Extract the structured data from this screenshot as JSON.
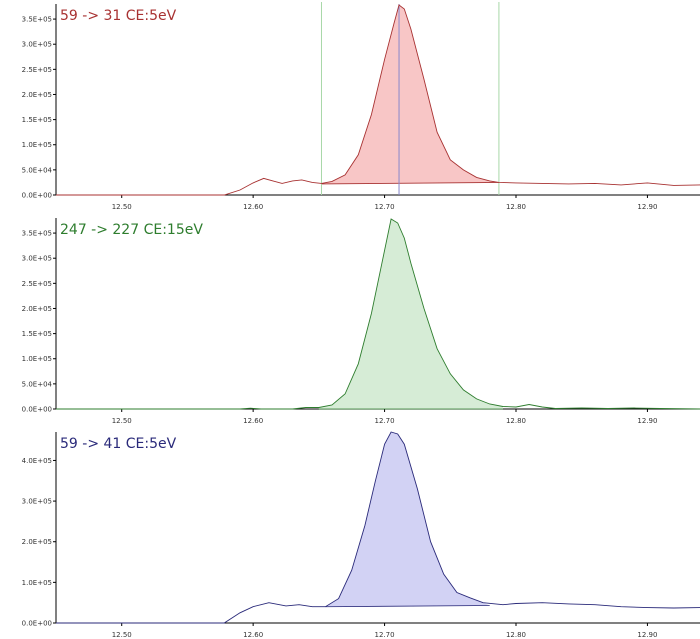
{
  "chart_data": [
    {
      "type": "line",
      "title": "59 -> 31 CE:5eV",
      "color": "#a83232",
      "fill": "#f8c6c6",
      "xlim": [
        12.45,
        12.94
      ],
      "ylim": [
        0,
        380000
      ],
      "x_ticks": [
        12.5,
        12.6,
        12.7,
        12.8,
        12.9
      ],
      "x_tick_labels": [
        "12.50",
        "12.60",
        "12.70",
        "12.80",
        "12.90"
      ],
      "y_ticks": [
        0,
        50000,
        100000,
        150000,
        200000,
        250000,
        300000,
        350000
      ],
      "y_tick_labels": [
        "0.0E+00",
        "5.0E+04",
        "1.0E+05",
        "1.5E+05",
        "2.0E+05",
        "2.5E+05",
        "3.0E+05",
        "3.5E+05"
      ],
      "integration_bounds": [
        12.652,
        12.787
      ],
      "integration_bounds_color": "#a8d8a8",
      "apex_marker": 12.711,
      "apex_marker_color": "#8888cc",
      "baseline": [
        [
          12.652,
          22000
        ],
        [
          12.787,
          25000
        ]
      ],
      "fill_range": [
        12.652,
        12.787
      ],
      "trace": [
        [
          12.45,
          0
        ],
        [
          12.578,
          0
        ],
        [
          12.59,
          10000
        ],
        [
          12.6,
          24000
        ],
        [
          12.608,
          33000
        ],
        [
          12.615,
          28000
        ],
        [
          12.622,
          23000
        ],
        [
          12.63,
          28000
        ],
        [
          12.637,
          30000
        ],
        [
          12.645,
          25000
        ],
        [
          12.652,
          23000
        ],
        [
          12.66,
          27000
        ],
        [
          12.67,
          40000
        ],
        [
          12.68,
          80000
        ],
        [
          12.69,
          160000
        ],
        [
          12.7,
          270000
        ],
        [
          12.707,
          340000
        ],
        [
          12.711,
          378000
        ],
        [
          12.715,
          370000
        ],
        [
          12.72,
          330000
        ],
        [
          12.73,
          230000
        ],
        [
          12.74,
          125000
        ],
        [
          12.75,
          70000
        ],
        [
          12.76,
          50000
        ],
        [
          12.77,
          35000
        ],
        [
          12.78,
          28000
        ],
        [
          12.787,
          25000
        ],
        [
          12.8,
          24000
        ],
        [
          12.82,
          23000
        ],
        [
          12.84,
          22000
        ],
        [
          12.86,
          23000
        ],
        [
          12.88,
          20000
        ],
        [
          12.9,
          24000
        ],
        [
          12.92,
          19000
        ],
        [
          12.94,
          20000
        ]
      ]
    },
    {
      "type": "line",
      "title": "247 -> 227 CE:15eV",
      "color": "#2e7d2e",
      "fill": "#d6ecd6",
      "xlim": [
        12.45,
        12.94
      ],
      "ylim": [
        0,
        380000
      ],
      "x_ticks": [
        12.5,
        12.6,
        12.7,
        12.8,
        12.9
      ],
      "x_tick_labels": [
        "12.50",
        "12.60",
        "12.70",
        "12.80",
        "12.90"
      ],
      "y_ticks": [
        0,
        50000,
        100000,
        150000,
        200000,
        250000,
        300000,
        350000
      ],
      "y_tick_labels": [
        "0.0E+00",
        "5.0E+04",
        "1.0E+05",
        "1.5E+05",
        "2.0E+05",
        "2.5E+05",
        "3.0E+05",
        "3.5E+05"
      ],
      "baseline": [
        [
          12.65,
          0
        ],
        [
          12.79,
          0
        ]
      ],
      "fill_range": [
        12.65,
        12.79
      ],
      "trace": [
        [
          12.45,
          0
        ],
        [
          12.59,
          0
        ],
        [
          12.598,
          1500
        ],
        [
          12.606,
          0
        ],
        [
          12.63,
          0
        ],
        [
          12.64,
          3000
        ],
        [
          12.65,
          3000
        ],
        [
          12.66,
          8000
        ],
        [
          12.67,
          30000
        ],
        [
          12.68,
          90000
        ],
        [
          12.69,
          190000
        ],
        [
          12.698,
          290000
        ],
        [
          12.705,
          378000
        ],
        [
          12.71,
          370000
        ],
        [
          12.715,
          340000
        ],
        [
          12.72,
          290000
        ],
        [
          12.73,
          200000
        ],
        [
          12.74,
          120000
        ],
        [
          12.75,
          70000
        ],
        [
          12.76,
          38000
        ],
        [
          12.77,
          20000
        ],
        [
          12.78,
          10000
        ],
        [
          12.79,
          5000
        ],
        [
          12.8,
          4000
        ],
        [
          12.81,
          9000
        ],
        [
          12.82,
          4000
        ],
        [
          12.83,
          1000
        ],
        [
          12.85,
          2000
        ],
        [
          12.87,
          1000
        ],
        [
          12.89,
          2000
        ],
        [
          12.91,
          1000
        ],
        [
          12.94,
          0
        ]
      ]
    },
    {
      "type": "line",
      "title": "59 -> 41 CE:5eV",
      "color": "#2a2a7a",
      "fill": "#d2d2f4",
      "xlim": [
        12.45,
        12.94
      ],
      "ylim": [
        0,
        470000
      ],
      "x_ticks": [
        12.5,
        12.6,
        12.7,
        12.8,
        12.9
      ],
      "x_tick_labels": [
        "12.50",
        "12.60",
        "12.70",
        "12.80",
        "12.90"
      ],
      "y_ticks": [
        0,
        100000,
        200000,
        300000,
        400000
      ],
      "y_tick_labels": [
        "0.0E+00",
        "1.0E+05",
        "2.0E+05",
        "3.0E+05",
        "4.0E+05"
      ],
      "baseline": [
        [
          12.655,
          40000
        ],
        [
          12.78,
          43000
        ]
      ],
      "fill_range": [
        12.655,
        12.78
      ],
      "trace": [
        [
          12.45,
          0
        ],
        [
          12.578,
          0
        ],
        [
          12.59,
          25000
        ],
        [
          12.6,
          40000
        ],
        [
          12.612,
          50000
        ],
        [
          12.625,
          42000
        ],
        [
          12.635,
          45000
        ],
        [
          12.645,
          40000
        ],
        [
          12.655,
          40000
        ],
        [
          12.665,
          60000
        ],
        [
          12.675,
          130000
        ],
        [
          12.685,
          240000
        ],
        [
          12.693,
          350000
        ],
        [
          12.7,
          440000
        ],
        [
          12.705,
          470000
        ],
        [
          12.71,
          465000
        ],
        [
          12.715,
          440000
        ],
        [
          12.725,
          330000
        ],
        [
          12.735,
          200000
        ],
        [
          12.745,
          120000
        ],
        [
          12.755,
          75000
        ],
        [
          12.765,
          62000
        ],
        [
          12.775,
          50000
        ],
        [
          12.79,
          45000
        ],
        [
          12.8,
          48000
        ],
        [
          12.82,
          50000
        ],
        [
          12.84,
          47000
        ],
        [
          12.86,
          45000
        ],
        [
          12.88,
          40000
        ],
        [
          12.9,
          38000
        ],
        [
          12.92,
          37000
        ],
        [
          12.94,
          38000
        ]
      ]
    }
  ]
}
